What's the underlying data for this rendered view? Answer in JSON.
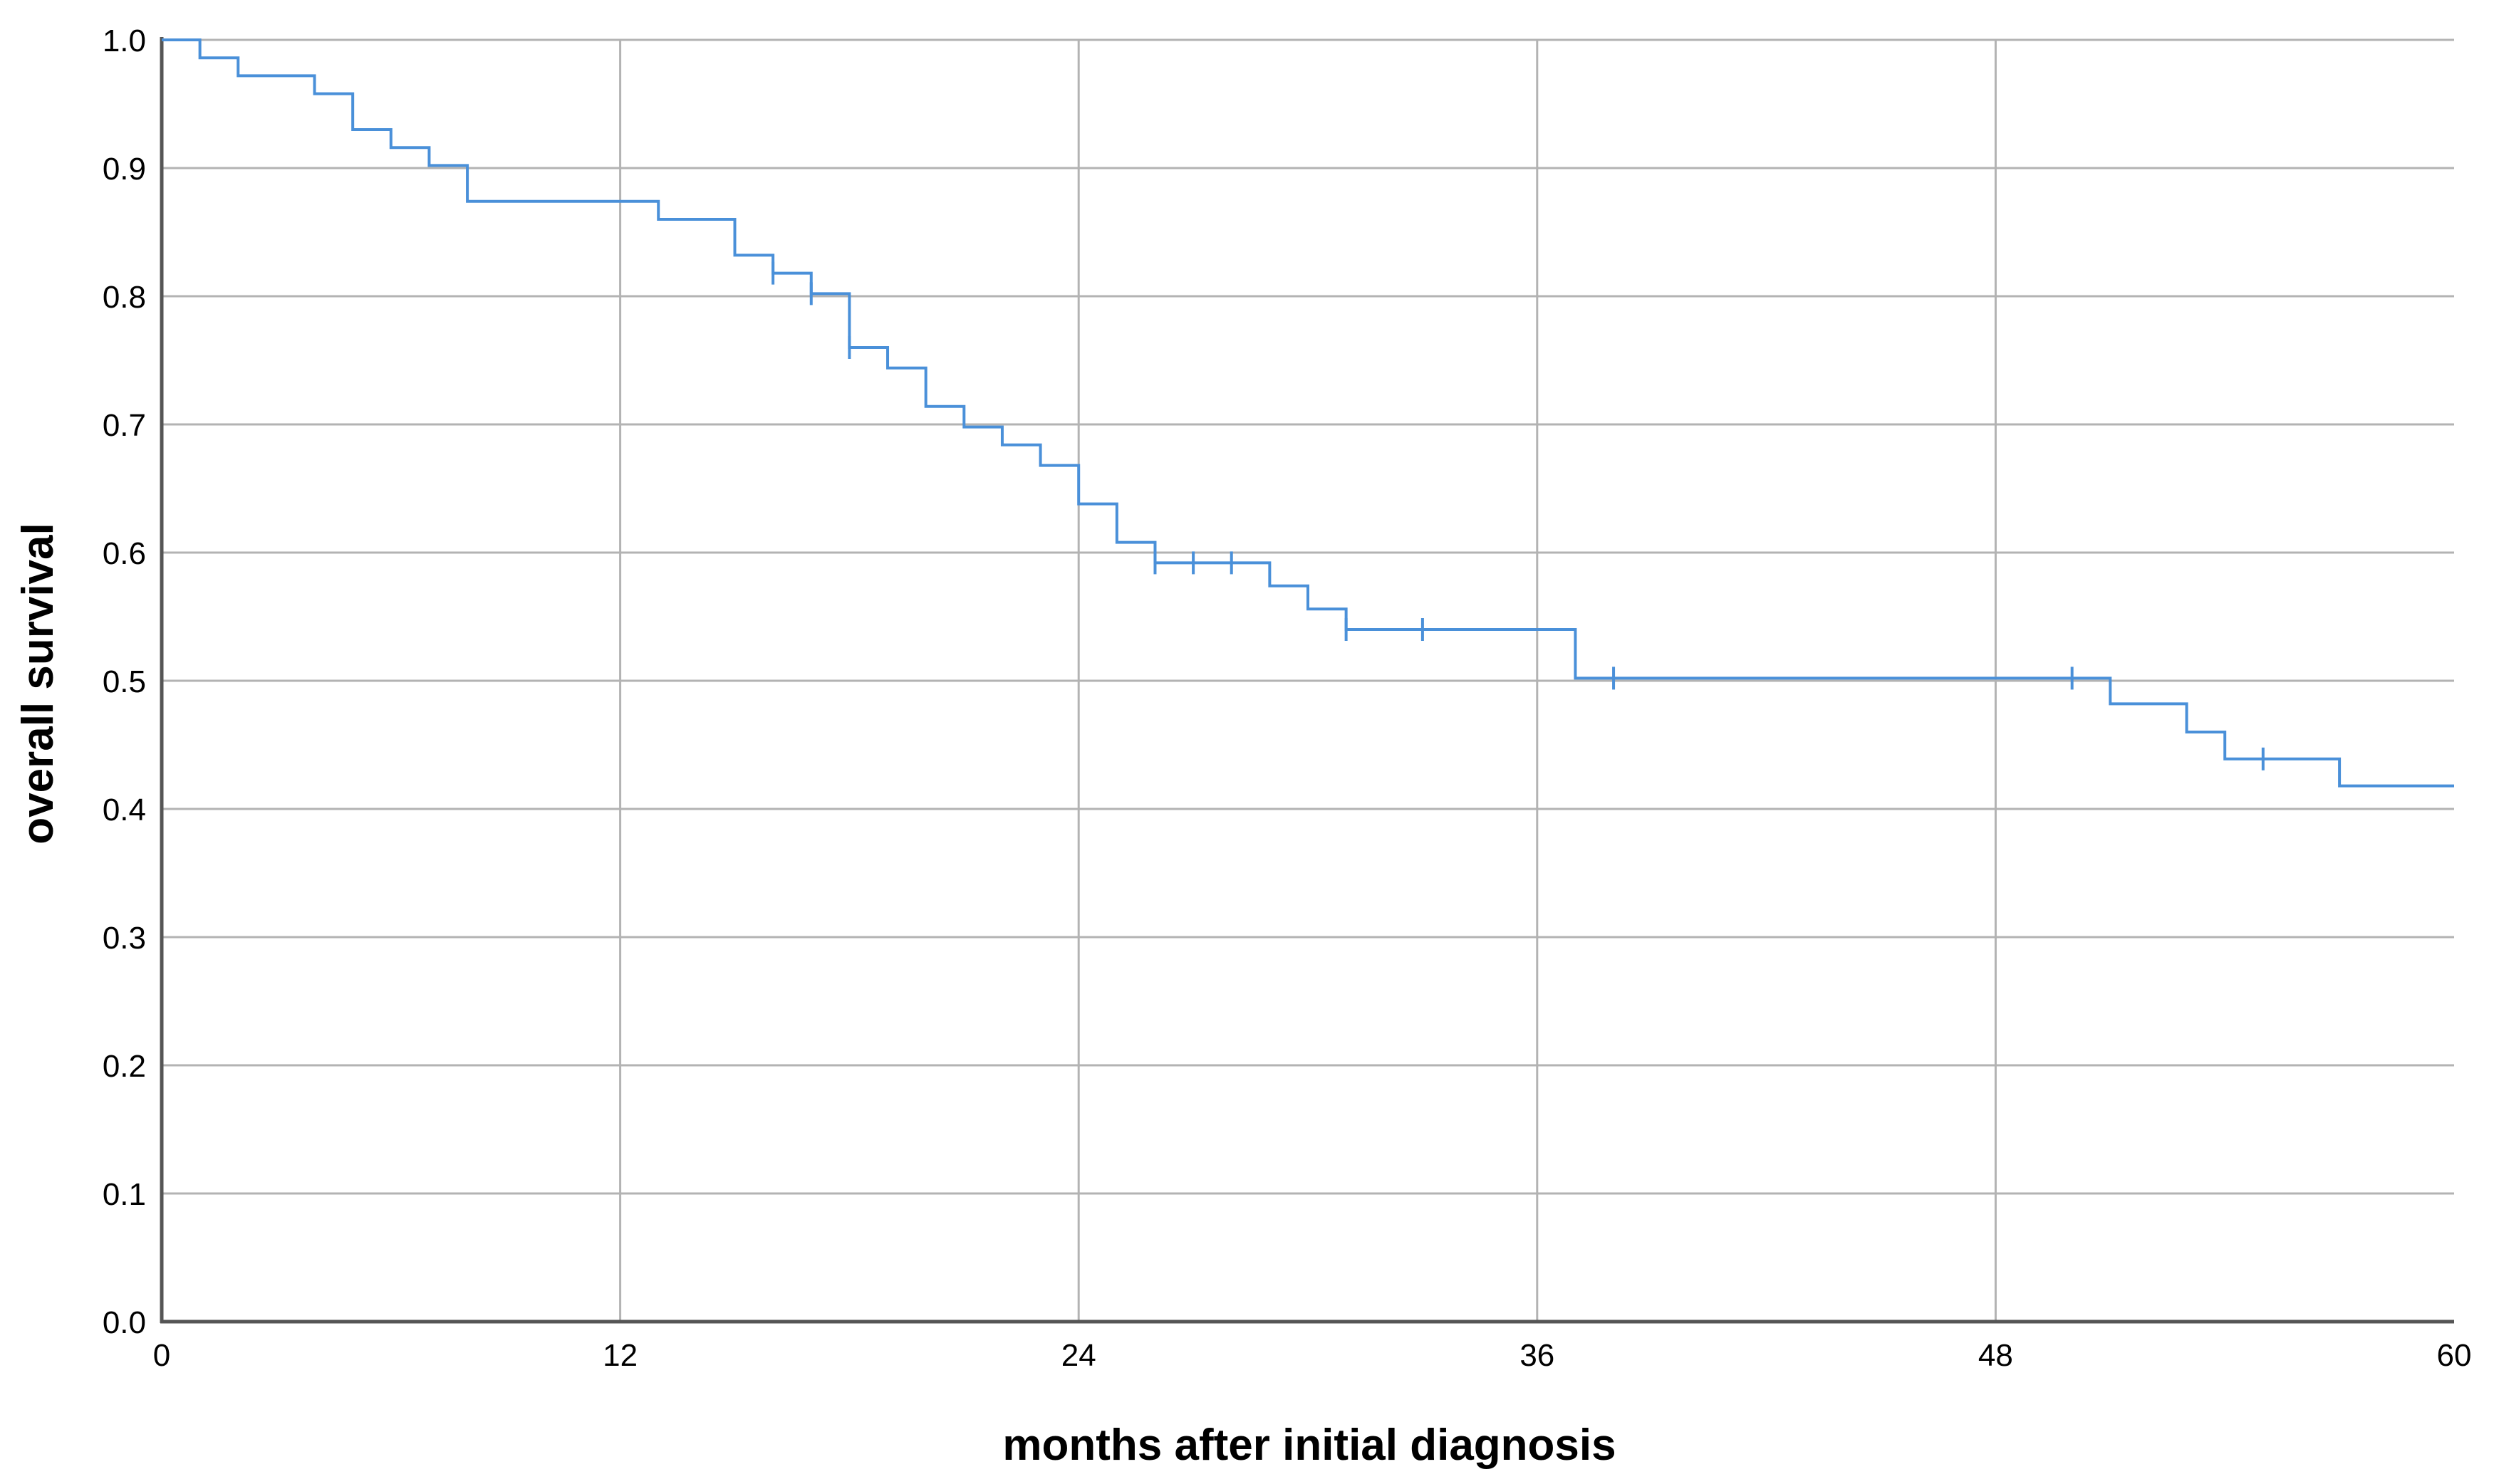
{
  "chart_data": {
    "type": "line",
    "title": "",
    "xlabel": "months after initial diagnosis",
    "ylabel": "overall survival",
    "xlim": [
      0,
      60
    ],
    "ylim": [
      0.0,
      1.0
    ],
    "x_ticks": [
      0,
      12,
      24,
      36,
      48,
      60
    ],
    "x_tick_labels": [
      "0",
      "12",
      "24",
      "36",
      "48",
      "60"
    ],
    "y_ticks": [
      0.0,
      0.1,
      0.2,
      0.3,
      0.4,
      0.5,
      0.6,
      0.7,
      0.8,
      0.9,
      1.0
    ],
    "y_tick_labels": [
      "0.0",
      "0.1",
      "0.2",
      "0.3",
      "0.4",
      "0.5",
      "0.6",
      "0.7",
      "0.8",
      "0.9",
      "1.0"
    ],
    "grid": true,
    "legend": "none",
    "series": [
      {
        "style": "step",
        "color": "#4a90d9",
        "points": [
          {
            "x": 0,
            "y": 1.0
          },
          {
            "x": 1.0,
            "y": 0.986
          },
          {
            "x": 2.0,
            "y": 0.972
          },
          {
            "x": 4.0,
            "y": 0.958
          },
          {
            "x": 5.0,
            "y": 0.93
          },
          {
            "x": 6.0,
            "y": 0.916
          },
          {
            "x": 7.0,
            "y": 0.902
          },
          {
            "x": 8.0,
            "y": 0.874
          },
          {
            "x": 13.0,
            "y": 0.86
          },
          {
            "x": 15.0,
            "y": 0.832
          },
          {
            "x": 16.0,
            "y": 0.818
          },
          {
            "x": 17.0,
            "y": 0.802
          },
          {
            "x": 18.0,
            "y": 0.76
          },
          {
            "x": 19.0,
            "y": 0.744
          },
          {
            "x": 20.0,
            "y": 0.714
          },
          {
            "x": 21.0,
            "y": 0.698
          },
          {
            "x": 22.0,
            "y": 0.684
          },
          {
            "x": 23.0,
            "y": 0.668
          },
          {
            "x": 24.0,
            "y": 0.638
          },
          {
            "x": 25.0,
            "y": 0.608
          },
          {
            "x": 26.0,
            "y": 0.592
          },
          {
            "x": 29.0,
            "y": 0.574
          },
          {
            "x": 30.0,
            "y": 0.556
          },
          {
            "x": 31.0,
            "y": 0.54
          },
          {
            "x": 37.0,
            "y": 0.502
          },
          {
            "x": 51.0,
            "y": 0.482
          },
          {
            "x": 53.0,
            "y": 0.46
          },
          {
            "x": 54.0,
            "y": 0.439
          },
          {
            "x": 57.0,
            "y": 0.418
          },
          {
            "x": 60.0,
            "y": 0.418
          }
        ],
        "censored": [
          {
            "x": 16.0,
            "y": 0.818
          },
          {
            "x": 17.0,
            "y": 0.802
          },
          {
            "x": 18.0,
            "y": 0.76
          },
          {
            "x": 26.0,
            "y": 0.592
          },
          {
            "x": 27.0,
            "y": 0.592
          },
          {
            "x": 28.0,
            "y": 0.592
          },
          {
            "x": 31.0,
            "y": 0.54
          },
          {
            "x": 33.0,
            "y": 0.54
          },
          {
            "x": 38.0,
            "y": 0.502
          },
          {
            "x": 50.0,
            "y": 0.502
          },
          {
            "x": 55.0,
            "y": 0.439
          }
        ]
      }
    ]
  }
}
